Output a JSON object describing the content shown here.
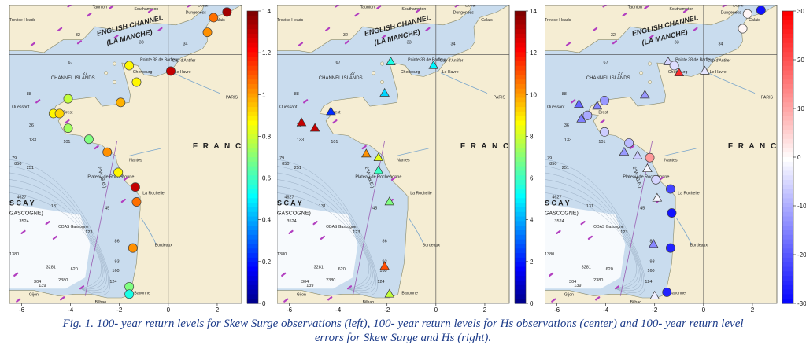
{
  "caption": {
    "line1": "Fig. 1. 100- year return levels for Skew Surge observations (left),  100- year return levels for  Hs observations (center) and 100- year return level",
    "line2": "errors for Skew Surge and Hs (right)."
  },
  "map_labels": {
    "english_channel": "ENGLISH CHANNEL",
    "la_manche": "(LA MANCHE)",
    "channel_islands": "CHANNEL ISLANDS",
    "france": "F R A N C",
    "biscay": "S C A Y",
    "gascogne": "GASCOGNE)",
    "plateau": "Plateau de Rochebonne",
    "meridian": "2°W (B.E.)",
    "odas": "ODAS Gascogne",
    "cities": [
      "Southampton",
      "Taunton",
      "Dover",
      "Dungeness",
      "Calais",
      "Trevise Heads",
      "Cherbourg",
      "Le Havre",
      "Brest",
      "Ouessant",
      "Nantes",
      "La Rochelle",
      "Bordeaux",
      "Bayonne",
      "Bilbao",
      "Gijon",
      "PARIS",
      "Pointe 38 de Barfleur",
      "Cap d'Antifer"
    ],
    "depths": [
      "53",
      "32",
      "33",
      "34",
      "67",
      "27",
      "88",
      "36",
      "133",
      "101",
      "79",
      "850",
      "251",
      "4627",
      "3524",
      "131",
      "123",
      "86",
      "45",
      "93",
      "124",
      "3281",
      "2380",
      "304",
      "139",
      "160",
      "620",
      "1380",
      "4817"
    ]
  },
  "x_ticks": [
    "-6",
    "-4",
    "-2",
    "0",
    "2"
  ],
  "colorbars": [
    {
      "ticks": [
        "1.4",
        "1.2",
        "1",
        "0.8",
        "0.6",
        "0.4",
        "0.2",
        "0"
      ],
      "scale": "jet"
    },
    {
      "ticks": [
        "14",
        "12",
        "10",
        "8",
        "6",
        "4",
        "2",
        "0"
      ],
      "scale": "jet"
    },
    {
      "ticks": [
        "30",
        "20",
        "10",
        "0",
        "-10",
        "-20",
        "-30"
      ],
      "scale": "bwr"
    }
  ],
  "panels": [
    {
      "name": "skew-surge-return-levels",
      "marker": "circle",
      "points": [
        {
          "lon": 2.4,
          "lat": 51.1,
          "value": 1.45
        },
        {
          "lon": 1.85,
          "lat": 50.95,
          "value": 1.15
        },
        {
          "lon": 1.6,
          "lat": 50.55,
          "value": 1.1
        },
        {
          "lon": -1.6,
          "lat": 49.65,
          "value": 0.95
        },
        {
          "lon": 0.1,
          "lat": 49.5,
          "value": 1.4
        },
        {
          "lon": -1.3,
          "lat": 49.2,
          "value": 0.95
        },
        {
          "lon": -4.1,
          "lat": 48.75,
          "value": 0.85
        },
        {
          "lon": -1.95,
          "lat": 48.65,
          "value": 1.05
        },
        {
          "lon": -4.7,
          "lat": 48.35,
          "value": 0.95
        },
        {
          "lon": -4.45,
          "lat": 48.35,
          "value": 1.0
        },
        {
          "lon": -4.1,
          "lat": 47.95,
          "value": 0.8
        },
        {
          "lon": -3.25,
          "lat": 47.65,
          "value": 0.75
        },
        {
          "lon": -2.5,
          "lat": 47.3,
          "value": 1.1
        },
        {
          "lon": -2.05,
          "lat": 46.75,
          "value": 0.95
        },
        {
          "lon": -1.35,
          "lat": 46.35,
          "value": 1.4
        },
        {
          "lon": -1.3,
          "lat": 45.95,
          "value": 1.15
        },
        {
          "lon": -1.45,
          "lat": 44.7,
          "value": 1.1
        },
        {
          "lon": -1.6,
          "lat": 43.65,
          "value": 0.75
        },
        {
          "lon": -1.6,
          "lat": 43.45,
          "value": 0.6
        }
      ]
    },
    {
      "name": "hs-return-levels",
      "marker": "triangle",
      "points": [
        {
          "lon": -1.85,
          "lat": 49.75,
          "value": 6.0
        },
        {
          "lon": -0.1,
          "lat": 49.65,
          "value": 5.5
        },
        {
          "lon": -2.1,
          "lat": 48.9,
          "value": 5.0
        },
        {
          "lon": -4.3,
          "lat": 48.4,
          "value": 2.5
        },
        {
          "lon": -5.5,
          "lat": 48.1,
          "value": 14.0
        },
        {
          "lon": -4.95,
          "lat": 47.95,
          "value": 14.0
        },
        {
          "lon": -2.85,
          "lat": 47.25,
          "value": 11.0
        },
        {
          "lon": -2.35,
          "lat": 47.15,
          "value": 9.0
        },
        {
          "lon": -2.35,
          "lat": 46.8,
          "value": 6.5
        },
        {
          "lon": -1.9,
          "lat": 45.95,
          "value": 7.5
        },
        {
          "lon": -2.1,
          "lat": 44.2,
          "value": 12.0
        },
        {
          "lon": -1.9,
          "lat": 43.45,
          "value": 8.5
        }
      ]
    },
    {
      "name": "return-level-errors",
      "marker": "mixed",
      "points": [
        {
          "lon": 2.35,
          "lat": 51.15,
          "value": -28,
          "marker": "circle"
        },
        {
          "lon": 1.8,
          "lat": 51.05,
          "value": 1,
          "marker": "circle"
        },
        {
          "lon": 1.6,
          "lat": 50.65,
          "value": 1,
          "marker": "circle"
        },
        {
          "lon": -1.45,
          "lat": 49.75,
          "value": -5,
          "marker": "triangle"
        },
        {
          "lon": -1.2,
          "lat": 49.65,
          "value": -4,
          "marker": "circle"
        },
        {
          "lon": -1.0,
          "lat": 49.45,
          "value": 25,
          "marker": "triangle"
        },
        {
          "lon": 0.05,
          "lat": 49.5,
          "value": -3,
          "marker": "triangle"
        },
        {
          "lon": -2.4,
          "lat": 48.85,
          "value": -12,
          "marker": "triangle"
        },
        {
          "lon": -4.05,
          "lat": 48.7,
          "value": -12,
          "marker": "circle"
        },
        {
          "lon": -5.1,
          "lat": 48.6,
          "value": -18,
          "marker": "triangle"
        },
        {
          "lon": -4.35,
          "lat": 48.55,
          "value": -14,
          "marker": "triangle"
        },
        {
          "lon": -4.75,
          "lat": 48.3,
          "value": -10,
          "marker": "circle"
        },
        {
          "lon": -5.0,
          "lat": 48.2,
          "value": -15,
          "marker": "triangle"
        },
        {
          "lon": -4.05,
          "lat": 47.85,
          "value": -6,
          "marker": "circle"
        },
        {
          "lon": -3.05,
          "lat": 47.55,
          "value": -8,
          "marker": "circle"
        },
        {
          "lon": -3.25,
          "lat": 47.3,
          "value": -12,
          "marker": "triangle"
        },
        {
          "lon": -2.7,
          "lat": 47.2,
          "value": -6,
          "marker": "triangle"
        },
        {
          "lon": -2.2,
          "lat": 47.15,
          "value": 12,
          "marker": "circle"
        },
        {
          "lon": -2.3,
          "lat": 46.85,
          "value": -1,
          "marker": "triangle"
        },
        {
          "lon": -1.95,
          "lat": 46.55,
          "value": -5,
          "marker": "circle"
        },
        {
          "lon": -1.35,
          "lat": 46.3,
          "value": -22,
          "marker": "circle"
        },
        {
          "lon": -1.9,
          "lat": 46.05,
          "value": -1,
          "marker": "triangle"
        },
        {
          "lon": -1.3,
          "lat": 45.65,
          "value": -28,
          "marker": "circle"
        },
        {
          "lon": -1.35,
          "lat": 44.7,
          "value": -26,
          "marker": "circle"
        },
        {
          "lon": -2.05,
          "lat": 44.8,
          "value": -14,
          "marker": "triangle"
        },
        {
          "lon": -1.5,
          "lat": 43.5,
          "value": -26,
          "marker": "circle"
        },
        {
          "lon": -2.0,
          "lat": 43.4,
          "value": -2,
          "marker": "triangle"
        }
      ]
    }
  ]
}
